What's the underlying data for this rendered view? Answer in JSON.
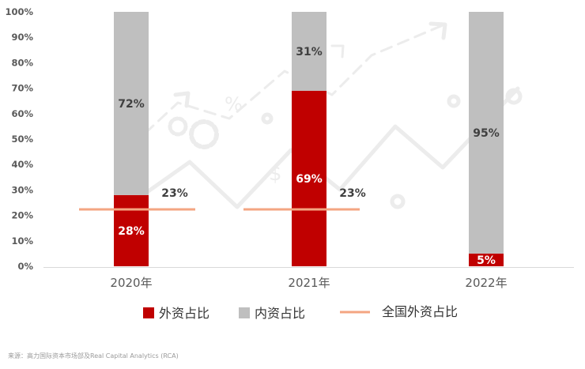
{
  "chart_data": {
    "type": "bar",
    "stacked": true,
    "categories": [
      "2020年",
      "2021年",
      "2022年"
    ],
    "series": [
      {
        "name": "外资占比",
        "values": [
          28,
          69,
          5
        ],
        "labels": [
          "28%",
          "69%",
          "5%"
        ],
        "color": "#c00000"
      },
      {
        "name": "内资占比",
        "values": [
          72,
          31,
          95
        ],
        "labels": [
          "72%",
          "31%",
          "95%"
        ],
        "color": "#bfbfbf"
      }
    ],
    "reference_line": {
      "name": "全国外资占比",
      "values": [
        23,
        23
      ],
      "labels": [
        "23%",
        "23%"
      ],
      "color": "#f4a582"
    },
    "y_ticks": [
      "0%",
      "10%",
      "20%",
      "30%",
      "40%",
      "50%",
      "60%",
      "70%",
      "80%",
      "90%",
      "100%"
    ],
    "ylim": [
      0,
      100
    ],
    "grid": false,
    "legend_position": "bottom",
    "title": "",
    "xlabel": "",
    "ylabel": ""
  },
  "source": "来源：高力国际资本市场部及Real Capital Analytics (RCA)",
  "colors": {
    "background": "#ffffff",
    "decor": "#eeeeee",
    "axis": "#d9d9d9"
  }
}
